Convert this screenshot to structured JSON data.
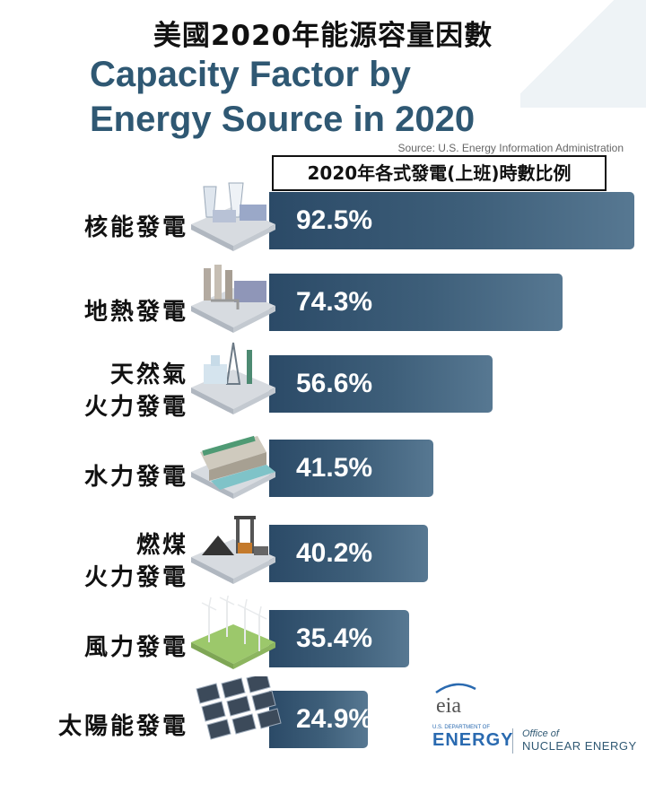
{
  "chart_data": {
    "type": "bar",
    "orientation": "horizontal",
    "title_zh": "美國2020年能源容量因數",
    "title_en_line1": "Capacity Factor by",
    "title_en_line2": "Energy Source in 2020",
    "source": "Source: U.S. Energy Information Administration",
    "subtitle": "2020年各式發電(上班)時數比例",
    "categories": [
      [
        "核能發電"
      ],
      [
        "地熱發電"
      ],
      [
        "天然氣",
        "火力發電"
      ],
      [
        "水力發電"
      ],
      [
        "燃煤",
        "火力發電"
      ],
      [
        "風力發電"
      ],
      [
        "太陽能發電"
      ]
    ],
    "values": [
      92.5,
      74.3,
      56.6,
      41.5,
      40.2,
      35.4,
      24.9
    ],
    "value_labels": [
      "92.5%",
      "74.3%",
      "56.6%",
      "41.5%",
      "40.2%",
      "35.4%",
      "24.9%"
    ],
    "icons": [
      "nuclear-plant-icon",
      "geothermal-plant-icon",
      "natural-gas-plant-icon",
      "hydro-dam-icon",
      "coal-mine-icon",
      "wind-turbine-icon",
      "solar-panel-icon"
    ],
    "bar_color": "#2f5873",
    "legend": "none",
    "grid": false
  },
  "logos": {
    "eia": "eia",
    "doe_small": "U.S. DEPARTMENT OF",
    "doe_big": "ENERGY",
    "office_line1": "Office of",
    "office_line2": "NUCLEAR ENERGY"
  }
}
